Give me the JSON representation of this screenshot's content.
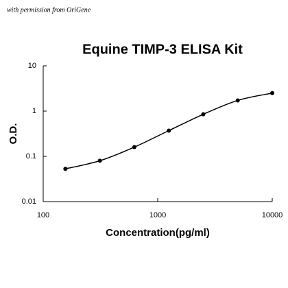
{
  "chart_data": {
    "type": "line",
    "title": "Equine TIMP-3 ELISA Kit",
    "note": "with permission from OriGene",
    "xlabel": "Concentration(pg/ml)",
    "ylabel": "O.D.",
    "x": [
      156.25,
      312.5,
      625,
      1250,
      2500,
      5000,
      10000
    ],
    "series": [
      {
        "color": "#000000",
        "values": [
          0.053,
          0.08,
          0.16,
          0.37,
          0.85,
          1.72,
          2.5
        ]
      }
    ],
    "xlim": [
      100,
      10000
    ],
    "ylim": [
      0.01,
      10
    ],
    "xscale": "log",
    "yscale": "log",
    "xticks": [
      100,
      1000,
      10000
    ],
    "yticks": [
      0.01,
      0.1,
      1,
      10
    ],
    "markers": true,
    "smooth": true
  }
}
